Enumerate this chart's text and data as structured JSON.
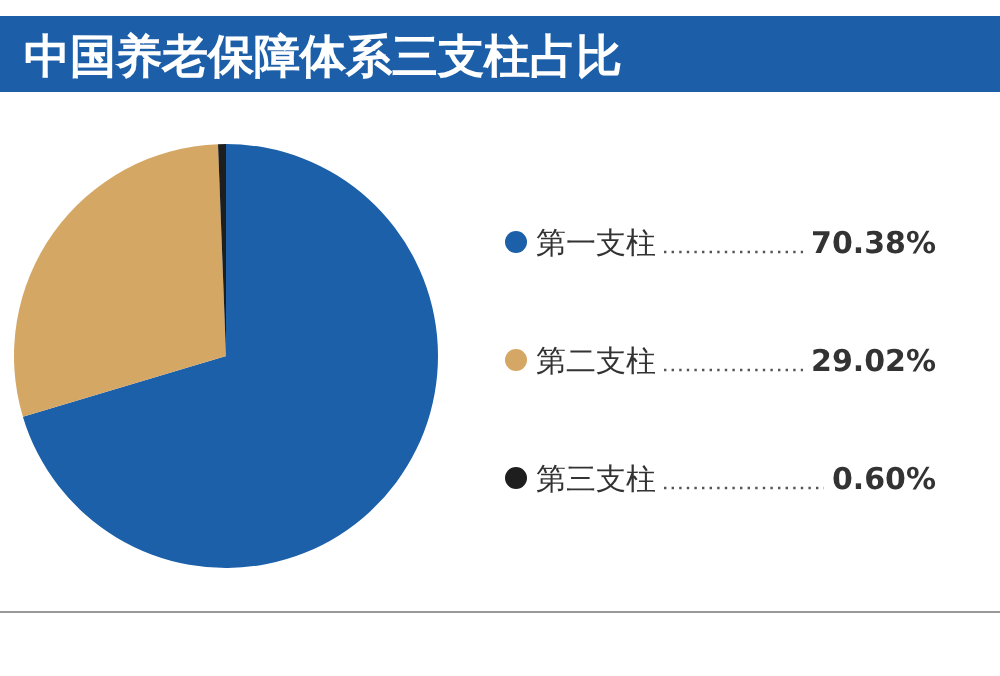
{
  "chart_data": {
    "type": "pie",
    "title": "中国养老保障体系三支柱占比",
    "categories": [
      "第一支柱",
      "第二支柱",
      "第三支柱"
    ],
    "values": [
      70.38,
      29.02,
      0.6
    ],
    "value_labels": [
      "70.38%",
      "29.02%",
      "0.60%"
    ],
    "colors": [
      "#1c60aa",
      "#d5a764",
      "#1e1e1e"
    ],
    "legend": "right"
  }
}
